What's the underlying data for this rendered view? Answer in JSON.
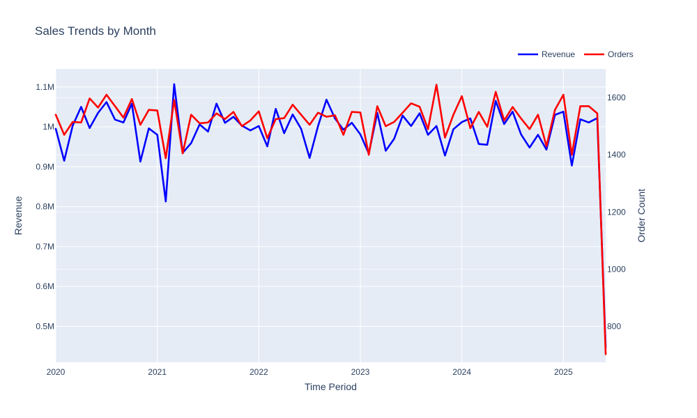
{
  "chart_data": {
    "type": "line",
    "title": "Sales Trends by Month",
    "xlabel": "Time Period",
    "ylabel": "Revenue",
    "y2label": "Order Count",
    "x_start": "2020-01",
    "x_ticks": [
      "2020",
      "2021",
      "2022",
      "2023",
      "2024",
      "2025"
    ],
    "xlim": [
      "2020-01",
      "2025-06"
    ],
    "ylim": [
      410000,
      1145000
    ],
    "y_ticks": [
      500000,
      600000,
      700000,
      800000,
      900000,
      1000000,
      1100000
    ],
    "y_tick_labels": [
      "0.5M",
      "0.6M",
      "0.7M",
      "0.8M",
      "0.9M",
      "1M",
      "1.1M"
    ],
    "y2lim": [
      675,
      1700
    ],
    "y2_ticks": [
      800,
      1000,
      1200,
      1400,
      1600
    ],
    "y2_tick_labels": [
      "800",
      "1000",
      "1200",
      "1400",
      "1600"
    ],
    "grid": true,
    "legend_position": "top-right",
    "series": [
      {
        "name": "Revenue",
        "axis": "y",
        "color": "#0000ff",
        "values": [
          995000,
          915000,
          1003000,
          1050000,
          997000,
          1035000,
          1062000,
          1018000,
          1011000,
          1058000,
          913000,
          996000,
          980000,
          813000,
          1107000,
          935000,
          959000,
          1006000,
          988000,
          1058000,
          1010000,
          1025000,
          1003000,
          991000,
          1002000,
          951000,
          1045000,
          984000,
          1031000,
          995000,
          922000,
          1002000,
          1068000,
          1021000,
          993000,
          1010000,
          981000,
          933000,
          1035000,
          940000,
          970000,
          1028000,
          1002000,
          1034000,
          980000,
          1002000,
          928000,
          994000,
          1012000,
          1021000,
          957000,
          955000,
          1065000,
          1007000,
          1038000,
          981000,
          948000,
          980000,
          943000,
          1030000,
          1038000,
          903000,
          1019000,
          1011000,
          1022000,
          447000
        ]
      },
      {
        "name": "Orders",
        "axis": "y2",
        "color": "#ff0000",
        "values": [
          1540,
          1470,
          1515,
          1513,
          1597,
          1565,
          1610,
          1570,
          1530,
          1595,
          1505,
          1557,
          1555,
          1388,
          1592,
          1405,
          1540,
          1510,
          1513,
          1545,
          1525,
          1550,
          1500,
          1520,
          1552,
          1458,
          1525,
          1528,
          1575,
          1540,
          1505,
          1547,
          1533,
          1538,
          1470,
          1550,
          1548,
          1400,
          1570,
          1500,
          1515,
          1547,
          1580,
          1568,
          1490,
          1645,
          1460,
          1540,
          1605,
          1493,
          1550,
          1498,
          1620,
          1520,
          1567,
          1527,
          1490,
          1540,
          1430,
          1557,
          1610,
          1400,
          1570,
          1570,
          1545,
          703
        ]
      }
    ]
  }
}
